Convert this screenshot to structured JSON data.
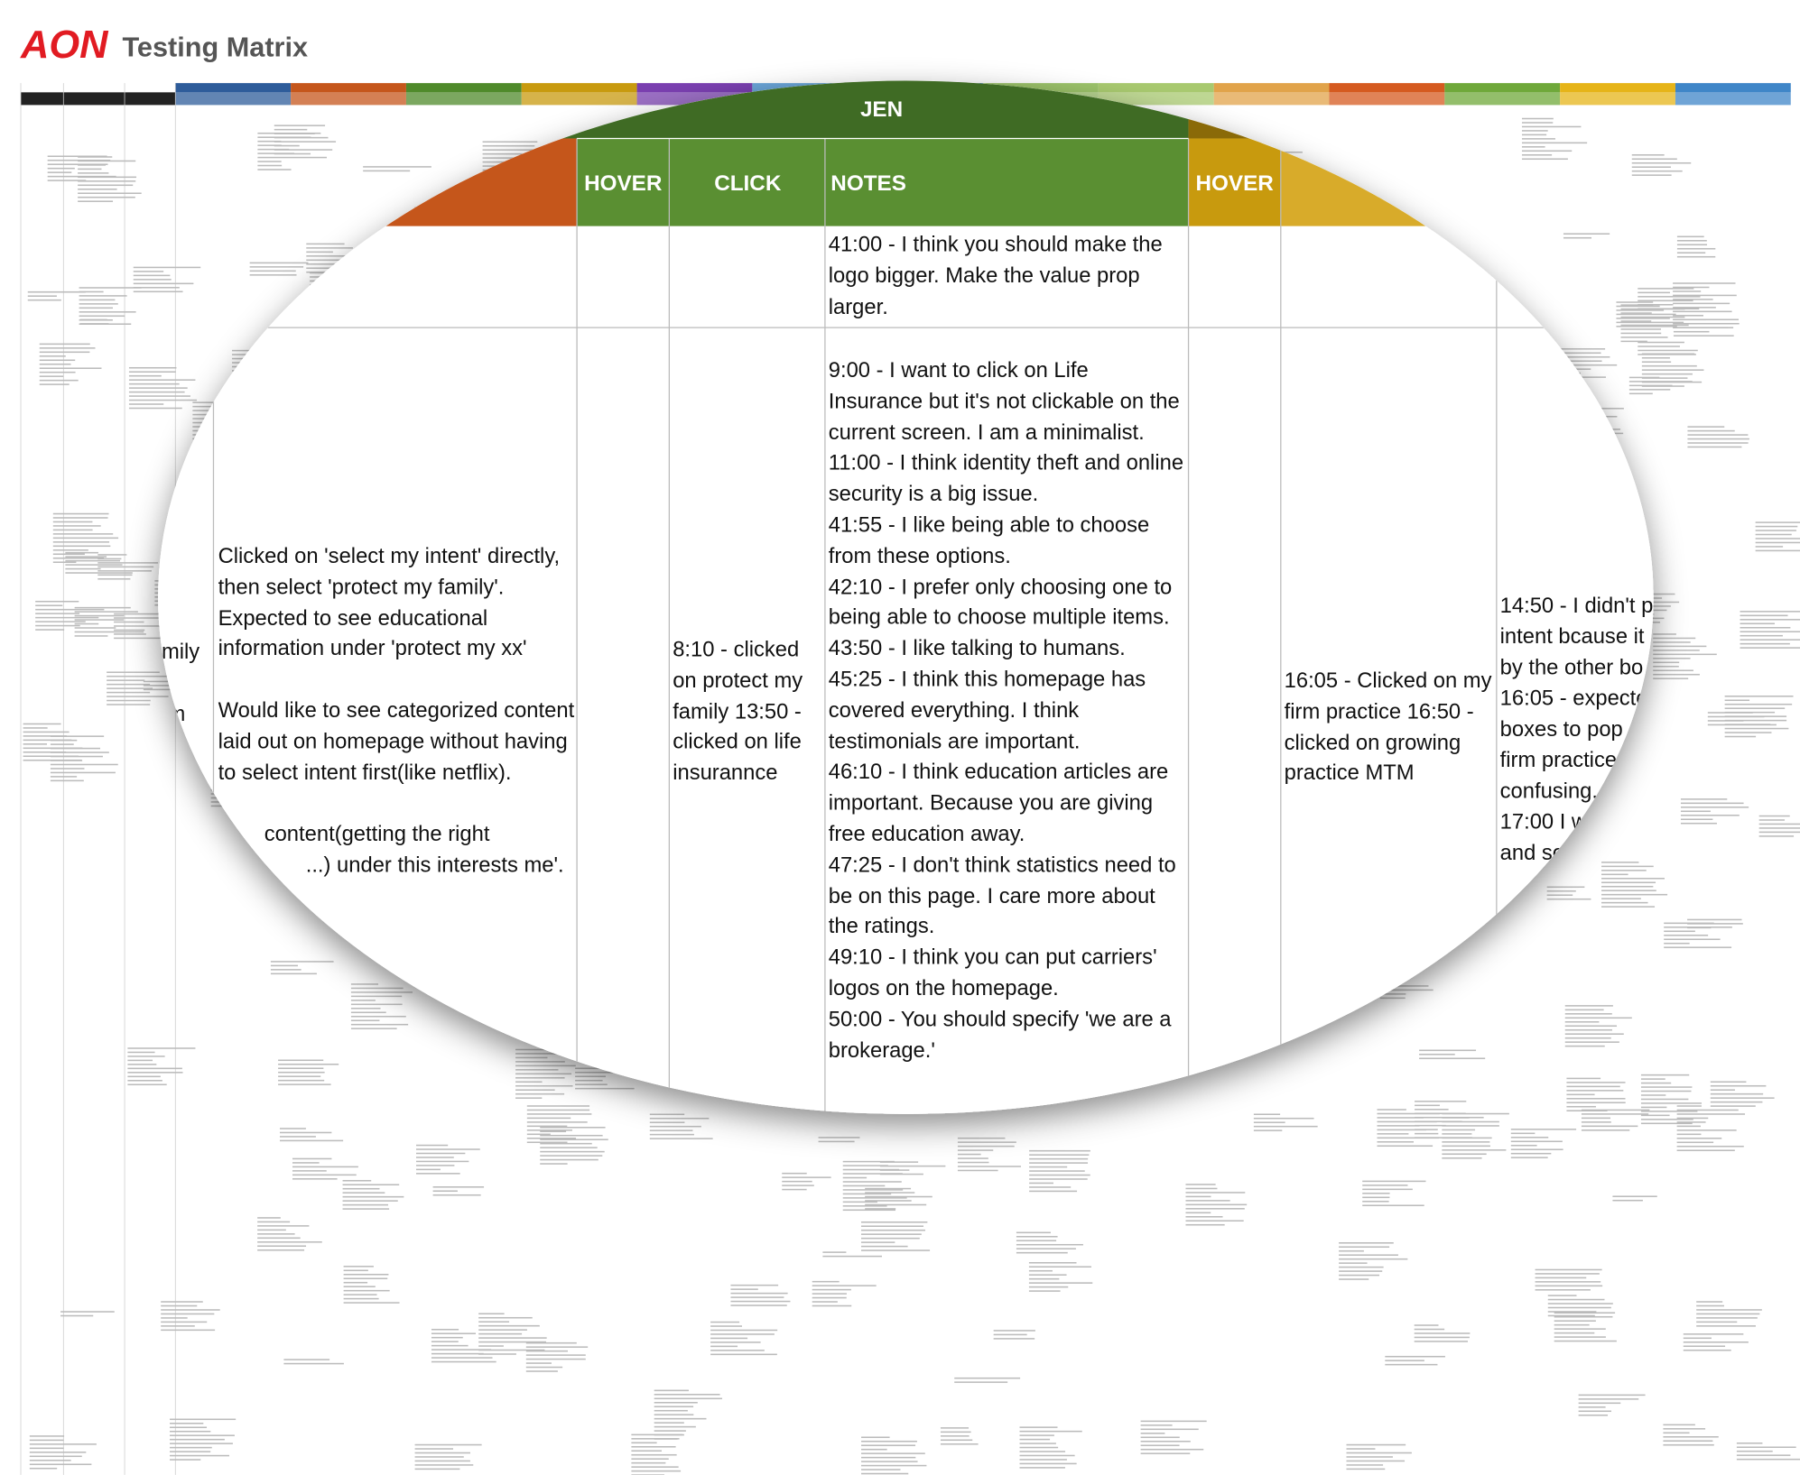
{
  "header": {
    "logo": "AON",
    "title": "Testing Matrix"
  },
  "magnifier": {
    "group_header": "JEN",
    "columns": [
      "HOVER",
      "CLICK",
      "NOTES",
      "HOVER"
    ],
    "row_1": {
      "notes": "41:00 - I think you should make the logo bigger. Make the value prop larger."
    },
    "row_2": {
      "left_fragments": [
        "mily",
        "tm"
      ],
      "previous_notes": [
        "Clicked on 'select my intent' directly, then select 'protect my family'. Expected to see educational information under 'protect my xx'",
        "Would like to see categorized content laid out on homepage without having to select intent first(like netflix).",
        "content(getting the right",
        "...) under this interests me'."
      ],
      "click": "8:10 - clicked on protect my family 13:50 - clicked on life insurannce",
      "notes": [
        "9:00 - I want to click on Life Insurance but it's not clickable on the current screen. I am a minimalist.",
        "11:00 - I think identity theft and online security is a big issue.",
        "41:55 -  I like being able to choose from these options.",
        "42:10 - I prefer only choosing one to being able to choose multiple items.",
        "43:50 - I like talking to humans.",
        "45:25 - I think this homepage has covered everything. I think testimonials are important.",
        "46:10 - I think education articles are important. Because you are giving free education away.",
        "47:25 - I don't think statistics need to be on this page. I care more about the ratings.",
        "49:10 - I think you can put carriers' logos on the homepage.",
        "50:00 - You should specify 'we are a brokerage.'"
      ],
      "next_hover": "16:05 - Clicked on my firm practice 16:50 - clicked on growing practice MTM",
      "next_notes_fragments": [
        "14:50 - I didn't p",
        "intent bcause it",
        "by the other bo",
        "16:05 - expecte",
        "boxes to pop",
        "firm practice",
        "confusing.",
        "17:00 I w",
        "and se"
      ]
    }
  }
}
